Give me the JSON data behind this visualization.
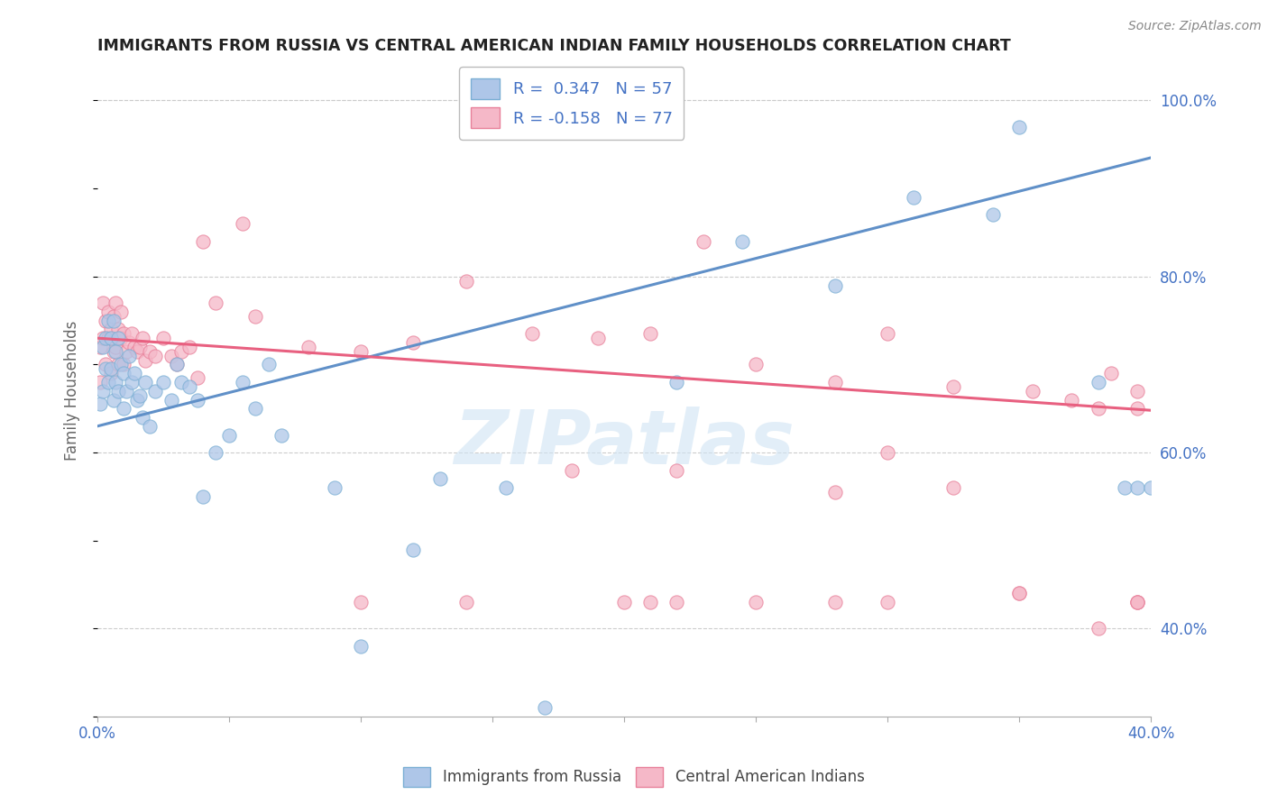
{
  "title": "IMMIGRANTS FROM RUSSIA VS CENTRAL AMERICAN INDIAN FAMILY HOUSEHOLDS CORRELATION CHART",
  "source": "Source: ZipAtlas.com",
  "ylabel": "Family Households",
  "xlim": [
    0.0,
    0.4
  ],
  "ylim": [
    0.3,
    1.04
  ],
  "x_ticks": [
    0.0,
    0.05,
    0.1,
    0.15,
    0.2,
    0.25,
    0.3,
    0.35,
    0.4
  ],
  "y_ticks_right": [
    0.4,
    0.6,
    0.8,
    1.0
  ],
  "y_labels_right": [
    "40.0%",
    "60.0%",
    "80.0%",
    "100.0%"
  ],
  "legend_line1": "R =  0.347   N = 57",
  "legend_line2": "R = -0.158   N = 77",
  "color_blue_fill": "#aec6e8",
  "color_blue_edge": "#7bafd4",
  "color_blue_line": "#6090c8",
  "color_pink_fill": "#f5b8c8",
  "color_pink_edge": "#e8809a",
  "color_pink_line": "#e86080",
  "color_text": "#4472c4",
  "watermark": "ZIPatlas",
  "blue_trend_y0": 0.63,
  "blue_trend_y1": 0.935,
  "pink_trend_y0": 0.73,
  "pink_trend_y1": 0.648,
  "blue_x": [
    0.001,
    0.002,
    0.002,
    0.003,
    0.003,
    0.004,
    0.004,
    0.005,
    0.005,
    0.006,
    0.006,
    0.007,
    0.007,
    0.008,
    0.008,
    0.009,
    0.01,
    0.01,
    0.011,
    0.012,
    0.013,
    0.014,
    0.015,
    0.016,
    0.017,
    0.018,
    0.02,
    0.022,
    0.025,
    0.028,
    0.03,
    0.032,
    0.035,
    0.038,
    0.04,
    0.045,
    0.05,
    0.055,
    0.06,
    0.065,
    0.07,
    0.09,
    0.1,
    0.12,
    0.13,
    0.155,
    0.17,
    0.22,
    0.245,
    0.28,
    0.31,
    0.34,
    0.35,
    0.38,
    0.39,
    0.395,
    0.4
  ],
  "blue_y": [
    0.655,
    0.67,
    0.72,
    0.695,
    0.73,
    0.68,
    0.75,
    0.695,
    0.73,
    0.66,
    0.75,
    0.68,
    0.715,
    0.67,
    0.73,
    0.7,
    0.65,
    0.69,
    0.67,
    0.71,
    0.68,
    0.69,
    0.66,
    0.665,
    0.64,
    0.68,
    0.63,
    0.67,
    0.68,
    0.66,
    0.7,
    0.68,
    0.675,
    0.66,
    0.55,
    0.6,
    0.62,
    0.68,
    0.65,
    0.7,
    0.62,
    0.56,
    0.38,
    0.49,
    0.57,
    0.56,
    0.31,
    0.68,
    0.84,
    0.79,
    0.89,
    0.87,
    0.97,
    0.68,
    0.56,
    0.56,
    0.56
  ],
  "pink_x": [
    0.001,
    0.001,
    0.002,
    0.002,
    0.003,
    0.003,
    0.004,
    0.004,
    0.005,
    0.005,
    0.006,
    0.006,
    0.007,
    0.007,
    0.008,
    0.008,
    0.009,
    0.009,
    0.01,
    0.01,
    0.011,
    0.012,
    0.013,
    0.014,
    0.015,
    0.016,
    0.017,
    0.018,
    0.02,
    0.022,
    0.025,
    0.028,
    0.03,
    0.032,
    0.035,
    0.038,
    0.04,
    0.045,
    0.055,
    0.06,
    0.08,
    0.1,
    0.12,
    0.14,
    0.165,
    0.19,
    0.21,
    0.23,
    0.25,
    0.28,
    0.3,
    0.325,
    0.355,
    0.37,
    0.385,
    0.395,
    0.18,
    0.22,
    0.28,
    0.3,
    0.325,
    0.35,
    0.35,
    0.38,
    0.395,
    0.395,
    0.395,
    0.395,
    0.28,
    0.21,
    0.14,
    0.1,
    0.22,
    0.2,
    0.25,
    0.3,
    0.38
  ],
  "pink_y": [
    0.68,
    0.72,
    0.73,
    0.77,
    0.7,
    0.75,
    0.73,
    0.76,
    0.69,
    0.74,
    0.715,
    0.755,
    0.72,
    0.77,
    0.7,
    0.74,
    0.73,
    0.76,
    0.7,
    0.735,
    0.715,
    0.725,
    0.735,
    0.72,
    0.715,
    0.72,
    0.73,
    0.705,
    0.715,
    0.71,
    0.73,
    0.71,
    0.7,
    0.715,
    0.72,
    0.685,
    0.84,
    0.77,
    0.86,
    0.755,
    0.72,
    0.715,
    0.725,
    0.795,
    0.735,
    0.73,
    0.735,
    0.84,
    0.7,
    0.68,
    0.735,
    0.675,
    0.67,
    0.66,
    0.69,
    0.67,
    0.58,
    0.58,
    0.555,
    0.6,
    0.56,
    0.44,
    0.44,
    0.4,
    0.43,
    0.65,
    0.43,
    0.43,
    0.43,
    0.43,
    0.43,
    0.43,
    0.43,
    0.43,
    0.43,
    0.43,
    0.65
  ]
}
